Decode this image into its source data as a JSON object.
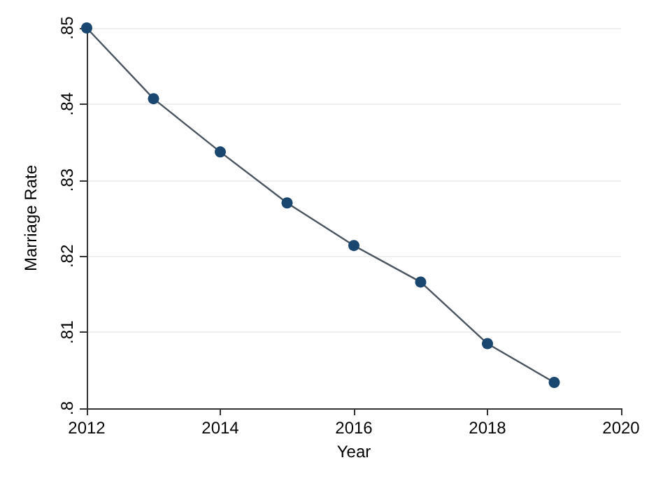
{
  "chart_data": {
    "type": "line",
    "xlabel": "Year",
    "ylabel": "Marriage Rate",
    "x": [
      2012,
      2013,
      2014,
      2015,
      2016,
      2017,
      2018,
      2019
    ],
    "series": [
      {
        "color": "#1a476f",
        "values": [
          0.85,
          0.8407,
          0.8337,
          0.827,
          0.8214,
          0.8166,
          0.8085,
          0.8034
        ]
      }
    ],
    "xlim": [
      2012,
      2020
    ],
    "xticks": [
      2012,
      2014,
      2016,
      2018,
      2020
    ],
    "ylim": [
      0.8,
      0.85
    ],
    "yticks": [
      {
        "value": 0.8,
        "label": ".8"
      },
      {
        "value": 0.81,
        "label": ".81"
      },
      {
        "value": 0.82,
        "label": ".82"
      },
      {
        "value": 0.83,
        "label": ".83"
      },
      {
        "value": 0.84,
        "label": ".84"
      },
      {
        "value": 0.85,
        "label": ".85"
      }
    ],
    "grid": "y",
    "marker": "circle",
    "line_style": "solid"
  }
}
